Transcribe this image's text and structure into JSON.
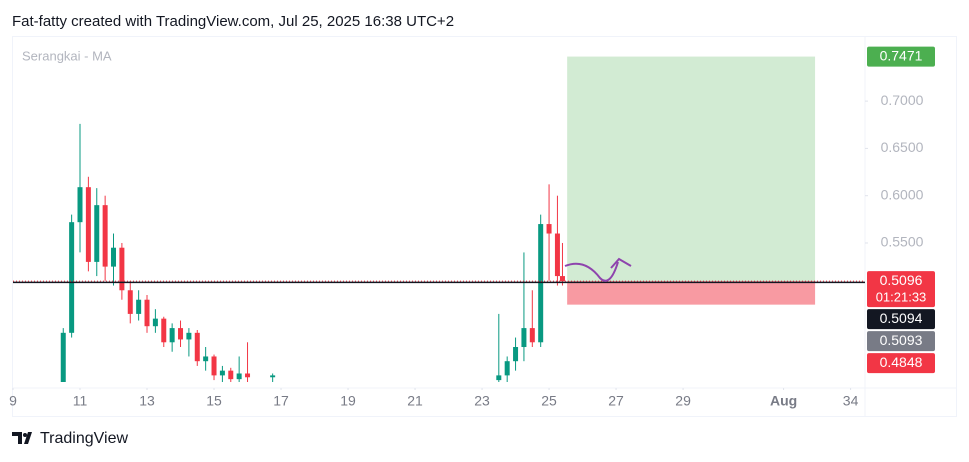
{
  "header": "Fat-fatty created with TradingView.com, Jul 25, 2025 16:38 UTC+2",
  "footer": "TradingView",
  "chart_data": {
    "type": "candlestick",
    "title": "Serangkai - MA",
    "x": [
      10.5,
      10.75,
      11,
      11.25,
      11.5,
      11.75,
      12,
      12.25,
      12.5,
      12.75,
      13,
      13.25,
      13.5,
      13.75,
      14,
      14.25,
      14.5,
      14.75,
      15,
      15.25,
      15.5,
      15.75,
      16,
      16.75,
      23.5,
      23.75,
      24,
      24.25,
      24.5,
      24.75,
      25,
      25.25,
      25.4
    ],
    "open": [
      0.403,
      0.455,
      0.572,
      0.609,
      0.53,
      0.59,
      0.525,
      0.545,
      0.5,
      0.475,
      0.49,
      0.462,
      0.47,
      0.445,
      0.46,
      0.448,
      0.455,
      0.425,
      0.43,
      0.41,
      0.415,
      0.406,
      0.412,
      0.408,
      0.405,
      0.41,
      0.425,
      0.44,
      0.46,
      0.445,
      0.57,
      0.56,
      0.515
    ],
    "high": [
      0.46,
      0.58,
      0.676,
      0.62,
      0.608,
      0.6,
      0.56,
      0.55,
      0.51,
      0.5,
      0.495,
      0.48,
      0.472,
      0.465,
      0.468,
      0.46,
      0.458,
      0.44,
      0.432,
      0.42,
      0.418,
      0.43,
      0.445,
      0.412,
      0.475,
      0.43,
      0.45,
      0.54,
      0.5,
      0.58,
      0.612,
      0.6,
      0.55
    ],
    "low": [
      0.403,
      0.45,
      0.54,
      0.52,
      0.515,
      0.51,
      0.505,
      0.49,
      0.465,
      0.468,
      0.455,
      0.455,
      0.44,
      0.435,
      0.44,
      0.43,
      0.42,
      0.415,
      0.405,
      0.403,
      0.403,
      0.403,
      0.403,
      0.403,
      0.403,
      0.403,
      0.415,
      0.425,
      0.44,
      0.44,
      0.51,
      0.505,
      0.505
    ],
    "close": [
      0.455,
      0.572,
      0.609,
      0.53,
      0.59,
      0.525,
      0.545,
      0.5,
      0.475,
      0.49,
      0.462,
      0.47,
      0.445,
      0.46,
      0.448,
      0.455,
      0.425,
      0.43,
      0.41,
      0.415,
      0.406,
      0.412,
      0.408,
      0.41,
      0.41,
      0.425,
      0.44,
      0.46,
      0.445,
      0.57,
      0.56,
      0.515,
      0.5096
    ],
    "up_color": "#089981",
    "down_color": "#f23645",
    "xlim": [
      9,
      34.43
    ],
    "ylim": [
      0.403,
      0.7678
    ],
    "xticks": [
      9,
      11,
      13,
      15,
      17,
      19,
      21,
      23,
      25,
      27,
      29,
      {
        "value": 32,
        "label": "Aug"
      },
      34
    ],
    "yticks": [
      {
        "value": 0.55,
        "label": "0.5500"
      },
      {
        "value": 0.6,
        "label": "0.6000"
      },
      {
        "value": 0.65,
        "label": "0.6500"
      },
      {
        "value": 0.7,
        "label": "0.7000"
      }
    ],
    "price_labels": [
      {
        "value": 0.7471,
        "color": "#4caf50"
      },
      {
        "value": 0.5096,
        "color": "#f23645",
        "countdown": "01:21:33"
      },
      {
        "value": 0.5094,
        "color": "#131722"
      },
      {
        "value": 0.5093,
        "color": "#787b86"
      },
      {
        "value": 0.4848,
        "color": "#f23645"
      }
    ],
    "position": {
      "start": 25.54,
      "end": 32.94
    }
  }
}
